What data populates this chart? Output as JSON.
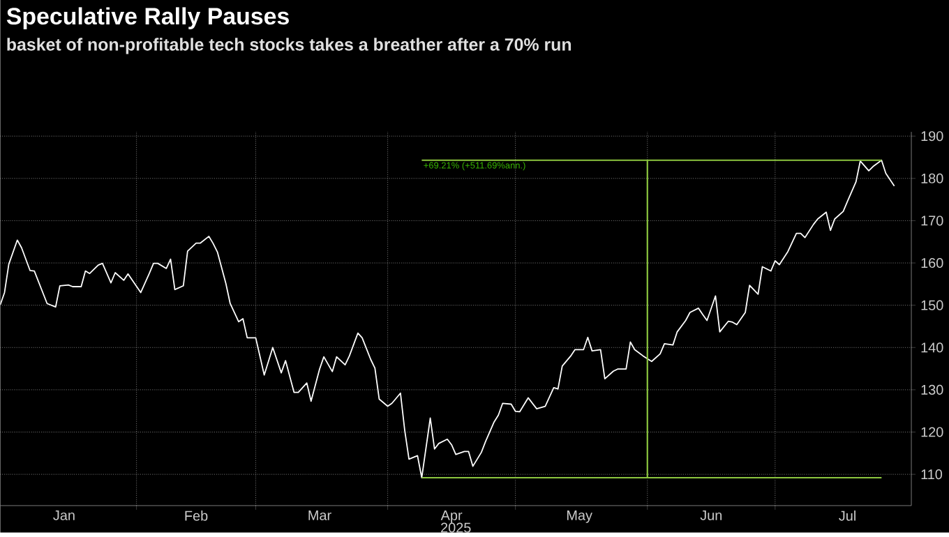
{
  "chart_data": {
    "type": "line",
    "title": "Speculative Rally Pauses",
    "subtitle": "basket of non-profitable tech stocks takes a breather after a 70% run",
    "xlabel": "2025",
    "xlim": [
      "2024-12-31",
      "2025-08-02"
    ],
    "ylim": [
      102.6,
      191
    ],
    "xticks": [
      {
        "value": "2025-02-01",
        "label": null
      },
      {
        "value": "2025-03-01",
        "label": null
      },
      {
        "value": "2025-04-01",
        "label": null
      },
      {
        "value": "2025-05-01",
        "label": null
      },
      {
        "value": "2025-06-01",
        "label": null
      },
      {
        "value": "2025-07-01",
        "label": null
      },
      {
        "value": "2025-01-15",
        "label": "Jan"
      },
      {
        "value": "2025-02-15",
        "label": "Feb"
      },
      {
        "value": "2025-03-16",
        "label": "Mar"
      },
      {
        "value": "2025-04-16",
        "label": "Apr"
      },
      {
        "value": "2025-05-16",
        "label": "May"
      },
      {
        "value": "2025-06-16",
        "label": "Jun"
      },
      {
        "value": "2025-07-18",
        "label": "Jul"
      }
    ],
    "yticks": [
      110,
      120,
      130,
      140,
      150,
      160,
      170,
      180,
      190
    ],
    "grid": true,
    "annotations": [
      {
        "text": "+69.21% (+511.69%ann.)",
        "x": "2025-04-09",
        "y": 184.3
      }
    ],
    "series": [
      {
        "color": "#ffffff",
        "x": [
          "2024-12-31",
          "2025-01-01",
          "2025-01-02",
          "2025-01-04",
          "2025-01-05",
          "2025-01-07",
          "2025-01-08",
          "2025-01-11",
          "2025-01-13",
          "2025-01-14",
          "2025-01-16",
          "2025-01-17",
          "2025-01-19",
          "2025-01-20",
          "2025-01-21",
          "2025-01-23",
          "2025-01-24",
          "2025-01-26",
          "2025-01-27",
          "2025-01-29",
          "2025-01-30",
          "2025-02-02",
          "2025-02-04",
          "2025-02-05",
          "2025-02-06",
          "2025-02-08",
          "2025-02-09",
          "2025-02-10",
          "2025-02-12",
          "2025-02-13",
          "2025-02-15",
          "2025-02-16",
          "2025-02-18",
          "2025-02-19",
          "2025-02-20",
          "2025-02-22",
          "2025-02-23",
          "2025-02-25",
          "2025-02-26",
          "2025-02-27",
          "2025-03-01",
          "2025-03-03",
          "2025-03-05",
          "2025-03-07",
          "2025-03-08",
          "2025-03-10",
          "2025-03-11",
          "2025-03-13",
          "2025-03-14",
          "2025-03-16",
          "2025-03-17",
          "2025-03-19",
          "2025-03-20",
          "2025-03-22",
          "2025-03-23",
          "2025-03-25",
          "2025-03-26",
          "2025-03-28",
          "2025-03-29",
          "2025-03-30",
          "2025-04-01",
          "2025-04-02",
          "2025-04-04",
          "2025-04-05",
          "2025-04-06",
          "2025-04-08",
          "2025-04-09",
          "2025-04-11",
          "2025-04-12",
          "2025-04-13",
          "2025-04-15",
          "2025-04-16",
          "2025-04-17",
          "2025-04-19",
          "2025-04-20",
          "2025-04-21",
          "2025-04-23",
          "2025-04-24",
          "2025-04-26",
          "2025-04-27",
          "2025-04-28",
          "2025-04-30",
          "2025-05-01",
          "2025-05-02",
          "2025-05-04",
          "2025-05-06",
          "2025-05-08",
          "2025-05-10",
          "2025-05-11",
          "2025-05-12",
          "2025-05-14",
          "2025-05-15",
          "2025-05-17",
          "2025-05-18",
          "2025-05-19",
          "2025-05-21",
          "2025-05-22",
          "2025-05-24",
          "2025-05-25",
          "2025-05-27",
          "2025-05-28",
          "2025-05-29",
          "2025-05-31",
          "2025-06-02",
          "2025-06-04",
          "2025-06-05",
          "2025-06-07",
          "2025-06-08",
          "2025-06-10",
          "2025-06-11",
          "2025-06-13",
          "2025-06-14",
          "2025-06-15",
          "2025-06-17",
          "2025-06-18",
          "2025-06-20",
          "2025-06-21",
          "2025-06-22",
          "2025-06-24",
          "2025-06-25",
          "2025-06-27",
          "2025-06-28",
          "2025-06-30",
          "2025-07-01",
          "2025-07-02",
          "2025-07-04",
          "2025-07-06",
          "2025-07-07",
          "2025-07-08",
          "2025-07-10",
          "2025-07-11",
          "2025-07-13",
          "2025-07-14",
          "2025-07-15",
          "2025-07-17",
          "2025-07-18",
          "2025-07-20",
          "2025-07-21",
          "2025-07-23",
          "2025-07-24",
          "2025-07-26",
          "2025-07-27",
          "2025-07-29"
        ],
        "values": [
          150.1,
          153.0,
          159.7,
          165.4,
          163.6,
          158.2,
          158.1,
          150.4,
          149.6,
          154.6,
          154.8,
          154.4,
          154.4,
          158.1,
          157.5,
          159.5,
          159.9,
          155.3,
          157.7,
          155.9,
          157.4,
          153.0,
          157.5,
          159.9,
          159.9,
          158.7,
          160.9,
          153.7,
          154.6,
          162.8,
          164.7,
          164.7,
          166.3,
          164.6,
          162.6,
          155.1,
          150.4,
          146.1,
          146.8,
          142.3,
          142.3,
          133.5,
          140.0,
          134.0,
          136.9,
          129.4,
          129.4,
          131.6,
          127.3,
          134.9,
          137.8,
          134.3,
          137.8,
          135.9,
          138.0,
          143.4,
          142.3,
          137.2,
          135.1,
          127.8,
          126.1,
          126.8,
          129.2,
          120.4,
          113.6,
          114.4,
          109.2,
          123.3,
          116.0,
          117.3,
          118.3,
          117.0,
          114.7,
          115.4,
          115.4,
          111.9,
          115.2,
          117.8,
          122.4,
          124.0,
          126.8,
          126.6,
          124.9,
          124.8,
          128.1,
          125.5,
          126.1,
          130.5,
          130.2,
          135.6,
          138.0,
          139.5,
          139.5,
          142.4,
          139.2,
          139.5,
          132.6,
          134.4,
          134.9,
          134.9,
          141.3,
          139.5,
          138.0,
          136.7,
          138.5,
          140.9,
          140.6,
          143.7,
          146.4,
          148.3,
          149.3,
          147.8,
          146.4,
          152.2,
          143.7,
          146.2,
          146.0,
          145.4,
          148.3,
          154.7,
          152.6,
          159.1,
          158.1,
          160.5,
          159.6,
          162.7,
          167.0,
          167.0,
          166.0,
          169.1,
          170.4,
          172.0,
          167.7,
          170.4,
          172.2,
          174.6,
          179.2,
          184.1,
          181.8,
          182.8,
          184.3,
          181.2,
          178.2
        ]
      },
      {
        "color": "#8cc63f",
        "x": [
          "2025-04-09",
          "2025-07-26"
        ],
        "values": [
          109.2,
          109.2
        ]
      },
      {
        "color": "#8cc63f",
        "x": [
          "2025-04-09",
          "2025-07-26"
        ],
        "values": [
          184.3,
          184.3
        ]
      },
      {
        "color": "#8cc63f",
        "x": [
          "2025-06-01",
          "2025-06-01"
        ],
        "values": [
          109.2,
          184.3
        ]
      }
    ]
  }
}
